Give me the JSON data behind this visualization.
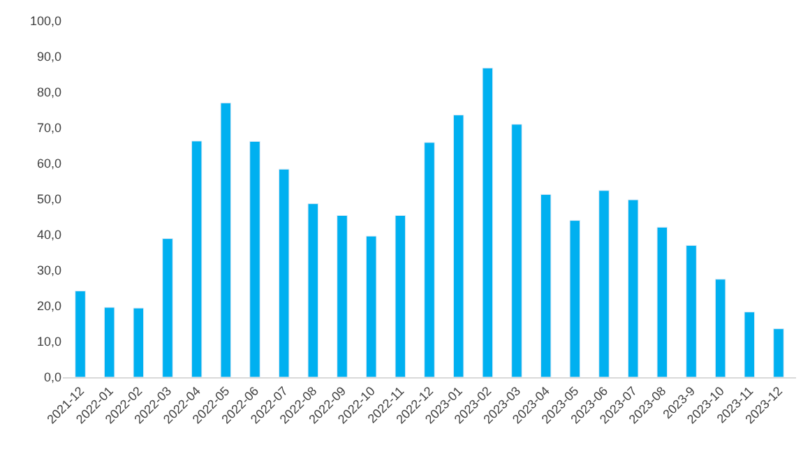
{
  "chart_data": {
    "type": "bar",
    "categories": [
      "2021-12",
      "2022-01",
      "2022-02",
      "2022-03",
      "2022-04",
      "2022-05",
      "2022-06",
      "2022-07",
      "2022-08",
      "2022-09",
      "2022-10",
      "2022-11",
      "2022-12",
      "2023-01",
      "2023-02",
      "2023-03",
      "2023-04",
      "2023-05",
      "2023-06",
      "2023-07",
      "2023-08",
      "2023-9",
      "2023-10",
      "2023-11",
      "2023-12"
    ],
    "values": [
      24.2,
      19.6,
      19.4,
      38.9,
      66.3,
      77.0,
      66.2,
      58.4,
      48.7,
      45.4,
      39.6,
      45.4,
      65.9,
      73.6,
      86.8,
      71.0,
      51.3,
      44.0,
      52.4,
      49.8,
      42.1,
      37.0,
      27.5,
      18.3,
      13.6
    ],
    "color": "#00b0f0",
    "ylim": [
      0,
      100
    ],
    "yticks": [
      {
        "value": 0,
        "label": "0,0"
      },
      {
        "value": 10,
        "label": "10,0"
      },
      {
        "value": 20,
        "label": "20,0"
      },
      {
        "value": 30,
        "label": "30,0"
      },
      {
        "value": 40,
        "label": "40,0"
      },
      {
        "value": 50,
        "label": "50,0"
      },
      {
        "value": 60,
        "label": "60,0"
      },
      {
        "value": 70,
        "label": "70,0"
      },
      {
        "value": 80,
        "label": "80,0"
      },
      {
        "value": 90,
        "label": "90,0"
      },
      {
        "value": 100,
        "label": "100,0"
      }
    ],
    "grid": false,
    "legend": false
  }
}
